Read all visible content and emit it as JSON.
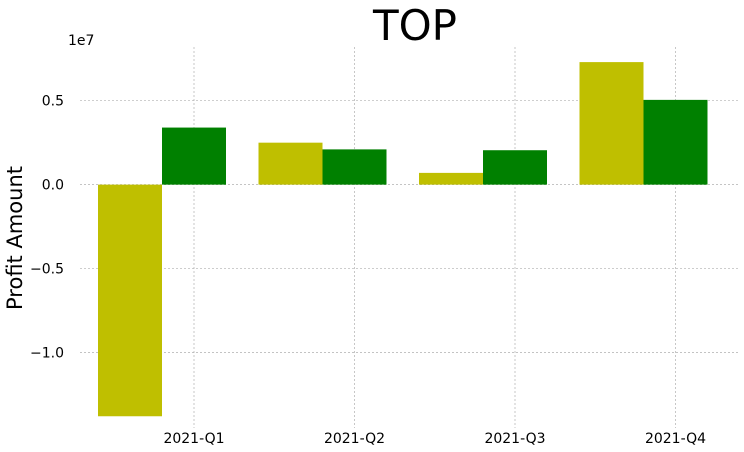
{
  "chart_data": {
    "type": "bar",
    "title": "TOP",
    "xlabel": "",
    "ylabel": "Profit Amount",
    "y_offset_label": "1e7",
    "categories": [
      "2021-Q1",
      "2021-Q2",
      "2021-Q3",
      "2021-Q4"
    ],
    "series": [
      {
        "color": "#bfbf00",
        "values": [
          -13800000,
          2500000,
          700000,
          7300000
        ]
      },
      {
        "color": "#008000",
        "values": [
          3400000,
          2100000,
          2050000,
          5050000
        ]
      }
    ],
    "ylim": [
      -14500000,
      8200000
    ],
    "yticks": [
      -10000000,
      -5000000,
      0,
      5000000
    ],
    "ytick_labels": [
      "−1.0",
      "−0.5",
      "0.0",
      "0.5"
    ],
    "grid": true,
    "legend": "none"
  }
}
